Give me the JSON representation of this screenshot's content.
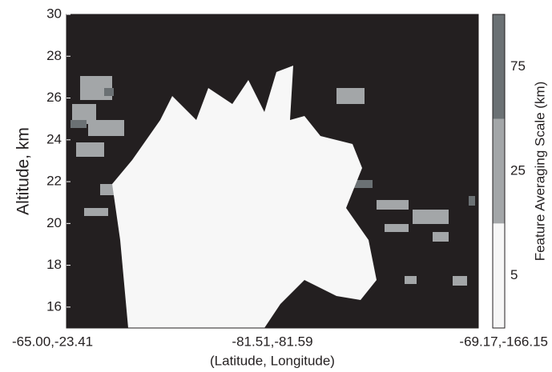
{
  "chart_data": {
    "type": "curtain",
    "ylabel": "Altitude, km",
    "xlabel": "(Latitude, Longitude)",
    "categories": [
      "-65.00,-23.41",
      "-81.51,-81.59",
      "-69.17,-166.15"
    ],
    "ylim": [
      15,
      30
    ],
    "yticks": [
      16,
      18,
      20,
      22,
      24,
      26,
      28,
      30
    ],
    "background": "#231f20",
    "colorbar": {
      "label": "Feature Averaging Scale (km)",
      "levels": [
        {
          "value": 5,
          "color": "#f7f7f7"
        },
        {
          "value": 25,
          "color": "#a3a6a8"
        },
        {
          "value": 75,
          "color": "#6b7174"
        }
      ]
    }
  }
}
